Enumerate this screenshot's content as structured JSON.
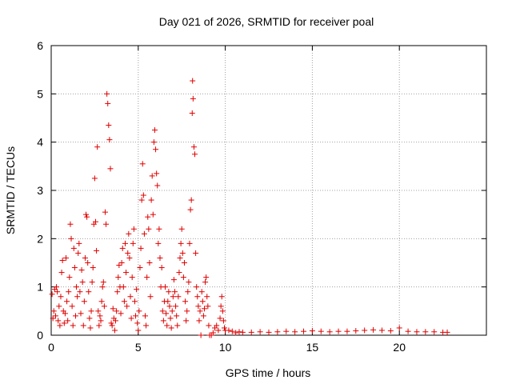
{
  "chart_data": {
    "type": "scatter",
    "title": "Day 021 of 2026, SRMTID for receiver poal",
    "xlabel": "GPS time / hours",
    "ylabel": "SRMTID / TECUs",
    "xlim": [
      0,
      25
    ],
    "ylim": [
      0,
      6
    ],
    "xticks": [
      0,
      5,
      10,
      15,
      20
    ],
    "yticks": [
      0,
      1,
      2,
      3,
      4,
      5,
      6
    ],
    "grid": true,
    "marker": "+",
    "color": "#e00000",
    "series": [
      {
        "name": "SRMTID",
        "points": [
          [
            0.05,
            0.85
          ],
          [
            0.1,
            0.35
          ],
          [
            0.15,
            0.5
          ],
          [
            0.2,
            0.95
          ],
          [
            0.25,
            0.4
          ],
          [
            0.3,
            1.0
          ],
          [
            0.35,
            0.9
          ],
          [
            0.4,
            0.3
          ],
          [
            0.45,
            0.6
          ],
          [
            0.5,
            0.2
          ],
          [
            0.55,
            0.8
          ],
          [
            0.6,
            1.3
          ],
          [
            0.65,
            1.55
          ],
          [
            0.7,
            0.5
          ],
          [
            0.75,
            0.25
          ],
          [
            0.8,
            0.45
          ],
          [
            0.85,
            1.6
          ],
          [
            0.9,
            0.7
          ],
          [
            0.95,
            0.3
          ],
          [
            1.0,
            0.9
          ],
          [
            1.05,
            1.2
          ],
          [
            1.1,
            2.3
          ],
          [
            1.15,
            2.0
          ],
          [
            1.2,
            0.6
          ],
          [
            1.25,
            0.2
          ],
          [
            1.3,
            1.8
          ],
          [
            1.35,
            1.4
          ],
          [
            1.4,
            0.4
          ],
          [
            1.45,
            1.0
          ],
          [
            1.5,
            0.8
          ],
          [
            1.55,
            1.7
          ],
          [
            1.6,
            1.9
          ],
          [
            1.65,
            0.9
          ],
          [
            1.7,
            0.45
          ],
          [
            1.75,
            1.35
          ],
          [
            1.8,
            1.1
          ],
          [
            1.85,
            0.2
          ],
          [
            1.9,
            0.7
          ],
          [
            1.95,
            1.6
          ],
          [
            2.0,
            2.5
          ],
          [
            2.05,
            2.45
          ],
          [
            2.1,
            1.5
          ],
          [
            2.15,
            0.9
          ],
          [
            2.2,
            0.35
          ],
          [
            2.25,
            0.15
          ],
          [
            2.3,
            0.5
          ],
          [
            2.35,
            1.1
          ],
          [
            2.4,
            1.4
          ],
          [
            2.45,
            2.3
          ],
          [
            2.5,
            3.25
          ],
          [
            2.55,
            2.35
          ],
          [
            2.6,
            1.75
          ],
          [
            2.65,
            3.9
          ],
          [
            2.7,
            0.5
          ],
          [
            2.75,
            0.2
          ],
          [
            2.8,
            0.4
          ],
          [
            2.85,
            0.3
          ],
          [
            2.9,
            0.7
          ],
          [
            2.95,
            1.0
          ],
          [
            3.0,
            1.1
          ],
          [
            3.05,
            0.6
          ],
          [
            3.1,
            2.55
          ],
          [
            3.15,
            2.3
          ],
          [
            3.2,
            5.0
          ],
          [
            3.25,
            4.8
          ],
          [
            3.3,
            4.35
          ],
          [
            3.35,
            4.05
          ],
          [
            3.4,
            3.45
          ],
          [
            3.45,
            0.25
          ],
          [
            3.5,
            0.2
          ],
          [
            3.55,
            0.55
          ],
          [
            3.6,
            0.35
          ],
          [
            3.65,
            0.1
          ],
          [
            3.7,
            0.3
          ],
          [
            3.75,
            0.5
          ],
          [
            3.8,
            0.9
          ],
          [
            3.85,
            1.2
          ],
          [
            3.9,
            1.45
          ],
          [
            3.95,
            1.0
          ],
          [
            4.0,
            0.45
          ],
          [
            4.05,
            1.5
          ],
          [
            4.1,
            1.8
          ],
          [
            4.15,
            1.0
          ],
          [
            4.2,
            0.7
          ],
          [
            4.25,
            1.9
          ],
          [
            4.3,
            1.3
          ],
          [
            4.35,
            0.6
          ],
          [
            4.4,
            1.7
          ],
          [
            4.45,
            2.1
          ],
          [
            4.5,
            1.6
          ],
          [
            4.55,
            0.8
          ],
          [
            4.6,
            0.35
          ],
          [
            4.65,
            1.2
          ],
          [
            4.7,
            1.9
          ],
          [
            4.75,
            2.2
          ],
          [
            4.8,
            0.7
          ],
          [
            4.85,
            0.4
          ],
          [
            4.9,
            0.95
          ],
          [
            4.95,
            0.25
          ],
          [
            5.0,
            0.1
          ],
          [
            5.05,
            0.5
          ],
          [
            5.1,
            1.4
          ],
          [
            5.15,
            1.8
          ],
          [
            5.2,
            2.8
          ],
          [
            5.25,
            3.55
          ],
          [
            5.3,
            2.9
          ],
          [
            5.35,
            2.1
          ],
          [
            5.4,
            0.4
          ],
          [
            5.45,
            0.2
          ],
          [
            5.5,
            1.2
          ],
          [
            5.55,
            2.45
          ],
          [
            5.6,
            2.2
          ],
          [
            5.65,
            1.5
          ],
          [
            5.7,
            0.8
          ],
          [
            5.75,
            2.8
          ],
          [
            5.8,
            3.3
          ],
          [
            5.85,
            2.5
          ],
          [
            5.9,
            4.0
          ],
          [
            5.95,
            4.25
          ],
          [
            6.0,
            3.85
          ],
          [
            6.05,
            3.35
          ],
          [
            6.1,
            3.1
          ],
          [
            6.15,
            1.9
          ],
          [
            6.2,
            2.2
          ],
          [
            6.25,
            1.6
          ],
          [
            6.3,
            1.0
          ],
          [
            6.35,
            1.4
          ],
          [
            6.4,
            0.5
          ],
          [
            6.45,
            0.3
          ],
          [
            6.5,
            0.7
          ],
          [
            6.55,
            1.0
          ],
          [
            6.6,
            0.45
          ],
          [
            6.65,
            0.2
          ],
          [
            6.7,
            0.7
          ],
          [
            6.75,
            0.9
          ],
          [
            6.8,
            0.6
          ],
          [
            6.85,
            0.35
          ],
          [
            6.9,
            0.15
          ],
          [
            6.95,
            0.5
          ],
          [
            7.0,
            0.8
          ],
          [
            7.05,
            1.15
          ],
          [
            7.1,
            0.9
          ],
          [
            7.15,
            0.6
          ],
          [
            7.2,
            0.4
          ],
          [
            7.25,
            0.2
          ],
          [
            7.3,
            0.8
          ],
          [
            7.35,
            1.3
          ],
          [
            7.4,
            1.6
          ],
          [
            7.45,
            1.9
          ],
          [
            7.5,
            2.2
          ],
          [
            7.55,
            1.7
          ],
          [
            7.6,
            1.2
          ],
          [
            7.65,
            1.5
          ],
          [
            7.7,
            0.7
          ],
          [
            7.75,
            0.3
          ],
          [
            7.8,
            0.5
          ],
          [
            7.85,
            0.9
          ],
          [
            7.9,
            1.1
          ],
          [
            7.95,
            1.9
          ],
          [
            8.0,
            2.6
          ],
          [
            8.05,
            2.8
          ],
          [
            8.1,
            4.6
          ],
          [
            8.12,
            5.27
          ],
          [
            8.15,
            4.9
          ],
          [
            8.2,
            3.9
          ],
          [
            8.25,
            3.75
          ],
          [
            8.3,
            1.7
          ],
          [
            8.35,
            1.0
          ],
          [
            8.4,
            0.8
          ],
          [
            8.45,
            0.6
          ],
          [
            8.5,
            0.3
          ],
          [
            8.55,
            0.5
          ],
          [
            8.6,
            0.0
          ],
          [
            8.65,
            0.9
          ],
          [
            8.7,
            0.7
          ],
          [
            8.75,
            0.4
          ],
          [
            8.8,
            0.55
          ],
          [
            8.85,
            1.1
          ],
          [
            8.9,
            1.2
          ],
          [
            8.95,
            0.8
          ],
          [
            9.0,
            0.6
          ],
          [
            9.05,
            0.2
          ],
          [
            9.1,
            0.0
          ],
          [
            9.2,
            0.0
          ],
          [
            9.3,
            0.05
          ],
          [
            9.4,
            0.15
          ],
          [
            9.5,
            0.2
          ],
          [
            9.6,
            0.1
          ],
          [
            9.7,
            0.35
          ],
          [
            9.75,
            0.6
          ],
          [
            9.8,
            0.8
          ],
          [
            9.85,
            0.5
          ],
          [
            9.9,
            0.3
          ],
          [
            9.95,
            0.15
          ],
          [
            10.0,
            0.1
          ],
          [
            10.2,
            0.1
          ],
          [
            10.4,
            0.08
          ],
          [
            10.6,
            0.05
          ],
          [
            10.8,
            0.07
          ],
          [
            11.0,
            0.06
          ],
          [
            11.5,
            0.06
          ],
          [
            12.0,
            0.07
          ],
          [
            12.5,
            0.06
          ],
          [
            13.0,
            0.07
          ],
          [
            13.5,
            0.08
          ],
          [
            14.0,
            0.07
          ],
          [
            14.5,
            0.08
          ],
          [
            15.0,
            0.09
          ],
          [
            15.5,
            0.08
          ],
          [
            16.0,
            0.07
          ],
          [
            16.5,
            0.08
          ],
          [
            17.0,
            0.08
          ],
          [
            17.5,
            0.09
          ],
          [
            18.0,
            0.1
          ],
          [
            18.5,
            0.11
          ],
          [
            19.0,
            0.1
          ],
          [
            19.5,
            0.09
          ],
          [
            20.0,
            0.15
          ],
          [
            20.5,
            0.08
          ],
          [
            21.0,
            0.07
          ],
          [
            21.5,
            0.07
          ],
          [
            22.0,
            0.07
          ],
          [
            22.5,
            0.06
          ],
          [
            22.75,
            0.06
          ]
        ]
      }
    ]
  }
}
